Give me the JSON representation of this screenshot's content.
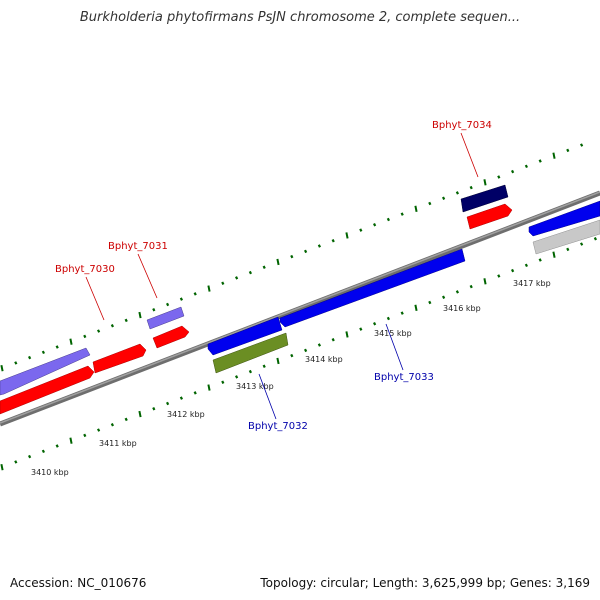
{
  "title": "Burkholderia phytofirmans PsJN chromosome 2, complete sequen...",
  "footer": {
    "accession": "Accession: NC_010676",
    "summary": "Topology: circular; Length: 3,625,999 bp; Genes: 3,169"
  },
  "ticks": [
    "3410 kbp",
    "3411 kbp",
    "3412 kbp",
    "3413 kbp",
    "3414 kbp",
    "3415 kbp",
    "3416 kbp",
    "3417 kbp"
  ],
  "gene_labels": {
    "g7030": "Bphyt_7030",
    "g7031": "Bphyt_7031",
    "g7032": "Bphyt_7032",
    "g7033": "Bphyt_7033",
    "g7034": "Bphyt_7034"
  },
  "colors": {
    "forward_label": "#cc0000",
    "reverse_label": "#0000aa",
    "cds_red": "#ff0000",
    "cds_blue": "#0000ee",
    "cds_purple": "#6a5acd",
    "cds_navy": "#000066",
    "cds_olive": "#6b8e23",
    "cds_gray": "#c0c0c0",
    "backbone": "#808080",
    "dots": "#006400"
  }
}
